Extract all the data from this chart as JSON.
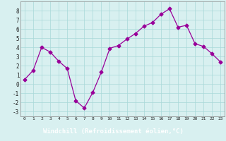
{
  "hours": [
    0,
    1,
    2,
    3,
    4,
    5,
    6,
    7,
    8,
    9,
    10,
    11,
    12,
    13,
    14,
    15,
    16,
    17,
    18,
    19,
    20,
    21,
    22,
    23
  ],
  "values": [
    0.5,
    1.5,
    4.0,
    3.5,
    2.5,
    1.7,
    -1.8,
    -2.6,
    -0.9,
    1.3,
    3.9,
    4.2,
    4.9,
    5.5,
    6.3,
    6.7,
    7.6,
    8.2,
    6.2,
    6.4,
    4.4,
    4.1,
    3.3,
    2.4
  ],
  "xlabel": "Windchill (Refroidissement éolien,°C)",
  "ylim": [
    -3.5,
    9.0
  ],
  "yticks": [
    -3,
    -2,
    -1,
    0,
    1,
    2,
    3,
    4,
    5,
    6,
    7,
    8
  ],
  "xticks": [
    0,
    1,
    2,
    3,
    4,
    5,
    6,
    7,
    8,
    9,
    10,
    11,
    12,
    13,
    14,
    15,
    16,
    17,
    18,
    19,
    20,
    21,
    22,
    23
  ],
  "line_color": "#990099",
  "marker": "D",
  "marker_size": 2.5,
  "bg_color": "#d8f0f0",
  "grid_color": "#a8d8d8",
  "xlabel_color": "#ffffff",
  "xlabel_bar_color": "#7878b8"
}
